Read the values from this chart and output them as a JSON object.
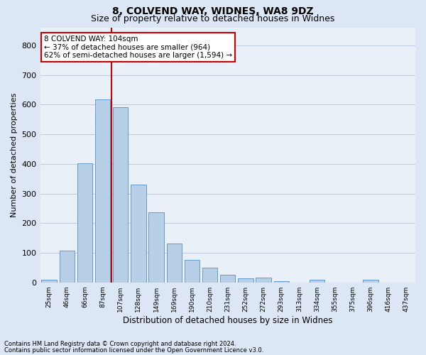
{
  "title1": "8, COLVEND WAY, WIDNES, WA8 9DZ",
  "title2": "Size of property relative to detached houses in Widnes",
  "xlabel": "Distribution of detached houses by size in Widnes",
  "ylabel": "Number of detached properties",
  "categories": [
    "25sqm",
    "46sqm",
    "66sqm",
    "87sqm",
    "107sqm",
    "128sqm",
    "149sqm",
    "169sqm",
    "190sqm",
    "210sqm",
    "231sqm",
    "252sqm",
    "272sqm",
    "293sqm",
    "313sqm",
    "334sqm",
    "355sqm",
    "375sqm",
    "396sqm",
    "416sqm",
    "437sqm"
  ],
  "values": [
    8,
    107,
    403,
    617,
    592,
    330,
    236,
    132,
    76,
    50,
    25,
    13,
    17,
    5,
    0,
    8,
    0,
    0,
    10,
    0,
    0
  ],
  "bar_color": "#b8cfe8",
  "bar_edge_color": "#6699cc",
  "grid_color": "#c0cce0",
  "vline_x": 3.5,
  "vline_color": "#cc0000",
  "annotation_text": "8 COLVEND WAY: 104sqm\n← 37% of detached houses are smaller (964)\n62% of semi-detached houses are larger (1,594) →",
  "annotation_box_color": "#ffffff",
  "annotation_box_edge": "#cc0000",
  "ylim": [
    0,
    860
  ],
  "yticks": [
    0,
    100,
    200,
    300,
    400,
    500,
    600,
    700,
    800
  ],
  "footer1": "Contains HM Land Registry data © Crown copyright and database right 2024.",
  "footer2": "Contains public sector information licensed under the Open Government Licence v3.0.",
  "bg_color": "#dce6f5",
  "plot_bg_color": "#eaf0f8",
  "title1_fontsize": 10,
  "title2_fontsize": 9,
  "annot_fontsize": 7.5,
  "ylabel_fontsize": 8,
  "xlabel_fontsize": 8.5,
  "ytick_fontsize": 8,
  "xtick_fontsize": 6.5
}
